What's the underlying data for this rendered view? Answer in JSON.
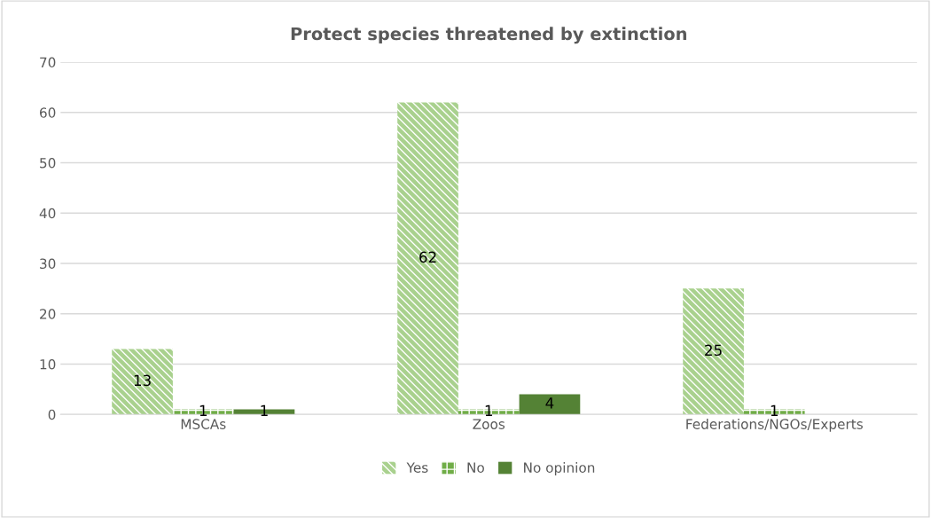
{
  "chart_data": {
    "type": "bar",
    "title": "Protect species threatened by extinction",
    "categories": [
      "MSCAs",
      "Zoos",
      "Federations/NGOs/Experts"
    ],
    "series": [
      {
        "name": "Yes",
        "color": "#a9d18e",
        "values": [
          13,
          62,
          25
        ]
      },
      {
        "name": "No",
        "color": "#70ad47",
        "values": [
          1,
          1,
          1
        ]
      },
      {
        "name": "No opinion",
        "color": "#548235",
        "values": [
          1,
          4,
          null
        ]
      }
    ],
    "ylim": [
      0,
      70
    ],
    "yticks": [
      0,
      10,
      20,
      30,
      40,
      50,
      60,
      70
    ],
    "grid": "y",
    "legend": "bottom",
    "data_labels": true
  }
}
